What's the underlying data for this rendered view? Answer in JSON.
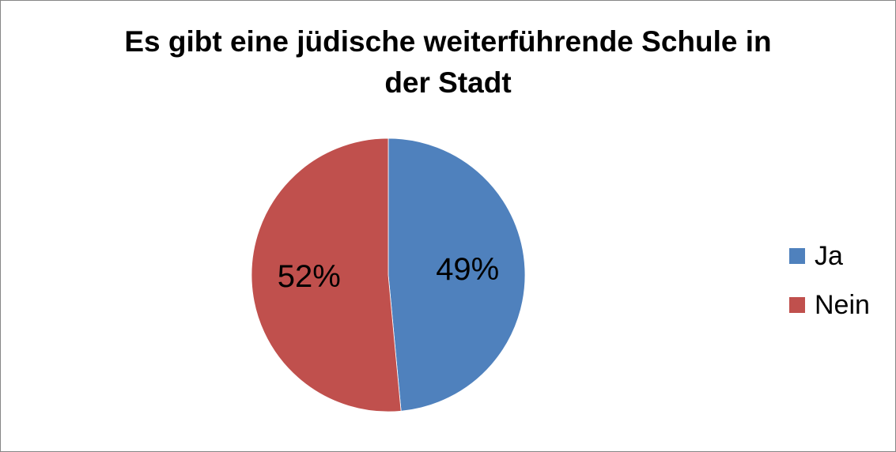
{
  "chart_data": {
    "type": "pie",
    "title": "Es gibt eine jüdische weiterführende Schule in der Stadt",
    "title_lines": [
      "Es gibt eine jüdische weiterführende Schule in",
      "der Stadt"
    ],
    "categories": [
      "Ja",
      "Nein"
    ],
    "values": [
      49,
      52
    ],
    "value_labels": [
      "49%",
      "52%"
    ],
    "colors": [
      "#4F81BD",
      "#C0504D"
    ],
    "start_angle": "top (12 o'clock)",
    "direction": "clockwise",
    "legend_position": "right",
    "data_labels": "inside"
  }
}
